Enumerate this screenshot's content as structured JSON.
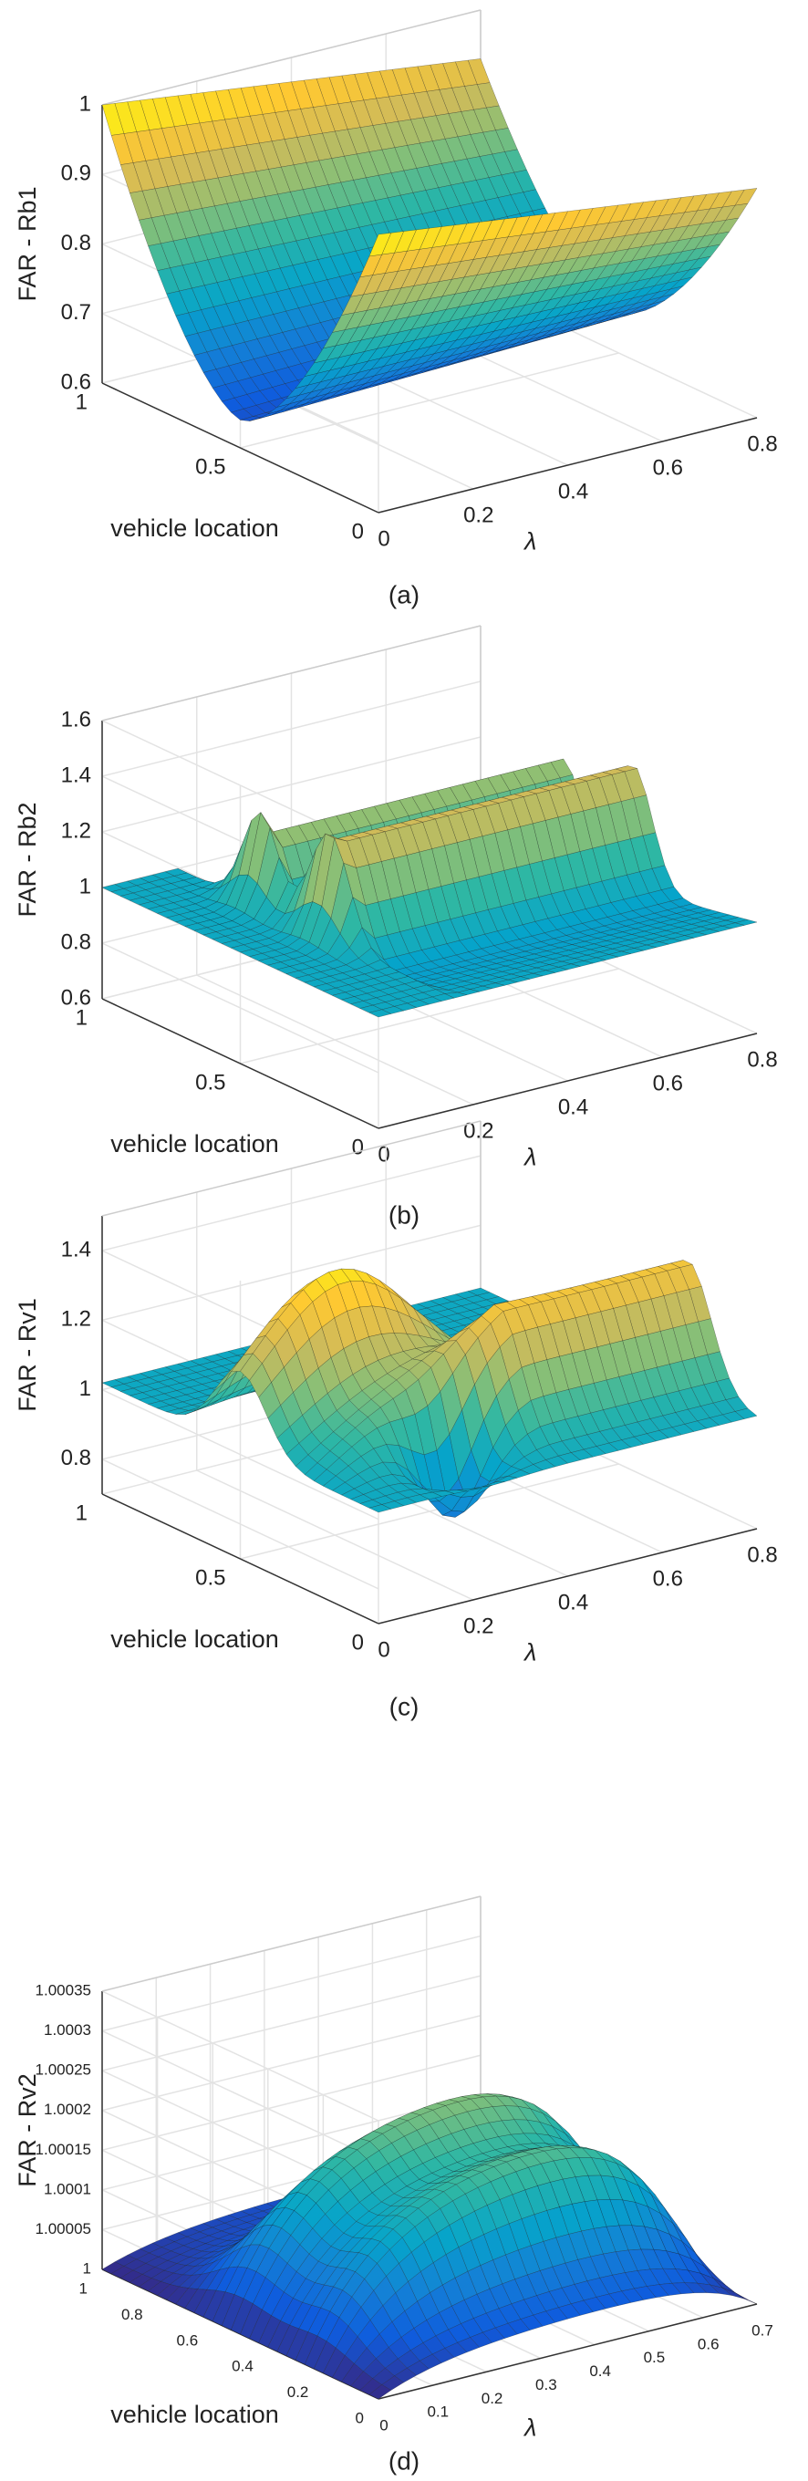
{
  "panels": [
    {
      "type": "surface",
      "caption": "(a)",
      "z_label": "FAR - Rb1",
      "x_label": "λ",
      "y_label": "vehicle location",
      "xlim": [
        0,
        0.8
      ],
      "xticks": [
        0,
        0.2,
        0.4,
        0.6,
        0.8
      ],
      "ylim": [
        0,
        1
      ],
      "yticks": [
        0,
        0.5,
        1
      ],
      "zlim": [
        0.6,
        1
      ],
      "zticks": [
        0.6,
        0.7,
        0.8,
        0.9,
        1
      ]
    },
    {
      "type": "surface",
      "caption": "(b)",
      "z_label": "FAR - Rb2",
      "x_label": "λ",
      "y_label": "vehicle location",
      "xlim": [
        0,
        0.8
      ],
      "xticks": [
        0,
        0.2,
        0.4,
        0.6,
        0.8
      ],
      "ylim": [
        0,
        1
      ],
      "yticks": [
        0,
        0.5,
        1
      ],
      "zlim": [
        0.6,
        1.6
      ],
      "zticks": [
        0.6,
        0.8,
        1,
        1.2,
        1.4,
        1.6
      ]
    },
    {
      "type": "surface",
      "caption": "(c)",
      "z_label": "FAR - Rv1",
      "x_label": "λ",
      "y_label": "vehicle location",
      "xlim": [
        0,
        0.8
      ],
      "xticks": [
        0,
        0.2,
        0.4,
        0.6,
        0.8
      ],
      "ylim": [
        0,
        1
      ],
      "yticks": [
        0,
        0.5,
        1
      ],
      "zlim": [
        0.7,
        1.5
      ],
      "zticks": [
        0.8,
        1,
        1.2,
        1.4
      ]
    },
    {
      "type": "surface",
      "caption": "(d)",
      "z_label": "FAR - Rv2",
      "x_label": "λ",
      "y_label": "vehicle location",
      "xlim": [
        0,
        0.7
      ],
      "xticks": [
        0,
        0.1,
        0.2,
        0.3,
        0.4,
        0.5,
        0.6,
        0.7
      ],
      "ylim": [
        0,
        1
      ],
      "yticks": [
        0,
        0.2,
        0.4,
        0.6,
        0.8,
        1
      ],
      "zlim": [
        1,
        1.00035
      ],
      "zticks": [
        1,
        1.00005,
        1.0001,
        1.00015,
        1.0002,
        1.00025,
        1.0003,
        1.00035
      ]
    }
  ]
}
